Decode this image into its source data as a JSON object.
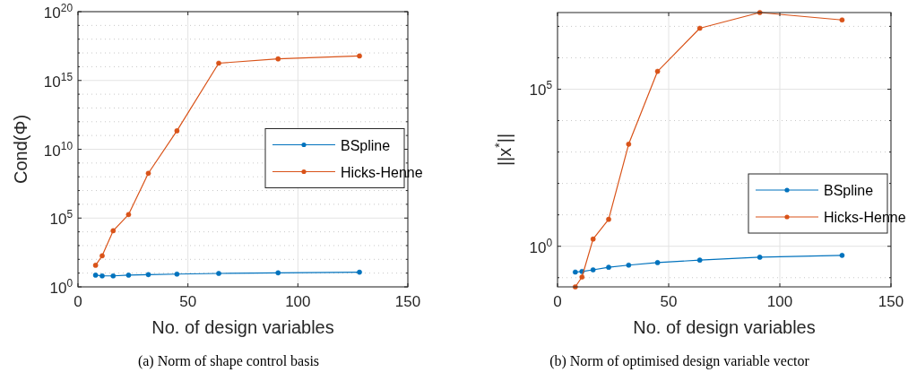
{
  "chart_data": [
    {
      "type": "line",
      "xlabel": "No. of design variables",
      "ylabel": "Cond(Φ)",
      "annotations": [
        "(a)  Norm of shape control basis"
      ],
      "log": "y",
      "grid": true,
      "legend": "right",
      "marker": "circle",
      "line_style": "solid",
      "xlim": [
        0,
        150
      ],
      "xticks": [
        0,
        50,
        100,
        150
      ],
      "ylim": [
        1,
        1e+20
      ],
      "yticks": [
        {
          "value": 1,
          "label": "10$^{0}$"
        },
        {
          "value": 10,
          "label": null
        },
        {
          "value": 100,
          "label": null
        },
        {
          "value": 1000,
          "label": null
        },
        {
          "value": 10000,
          "label": null
        },
        {
          "value": 100000.0,
          "label": "10$^{5}$"
        },
        {
          "value": 1000000.0,
          "label": null
        },
        {
          "value": 10000000.0,
          "label": null
        },
        {
          "value": 100000000.0,
          "label": null
        },
        {
          "value": 1000000000.0,
          "label": null
        },
        {
          "value": 10000000000.0,
          "label": "10$^{10}$"
        },
        {
          "value": 100000000000.0,
          "label": null
        },
        {
          "value": 1000000000000.0,
          "label": null
        },
        {
          "value": 10000000000000.0,
          "label": null
        },
        {
          "value": 100000000000000.0,
          "label": null
        },
        {
          "value": 1000000000000000.0,
          "label": "10$^{15}$"
        },
        {
          "value": 1e+16,
          "label": null
        },
        {
          "value": 1e+17,
          "label": null
        },
        {
          "value": 1e+18,
          "label": null
        },
        {
          "value": 1e+19,
          "label": null
        },
        {
          "value": 1e+20,
          "label": "10$^{20}$"
        }
      ],
      "x": [
        8,
        11,
        16,
        23,
        32,
        45,
        64,
        91,
        128
      ],
      "series": [
        {
          "name": "BSpline",
          "color": "#0072bd",
          "values": [
            7.1,
            6.3,
            6.3,
            7.1,
            7.8,
            8.5,
            9.5,
            10.5,
            11.7
          ]
        },
        {
          "name": "Hicks-Henne",
          "color": "#d95319",
          "values": [
            37,
            182,
            12000,
            180000,
            180000000.0,
            220000000000.0,
            1.8e+16,
            3.7e+16,
            6e+16
          ]
        }
      ]
    },
    {
      "type": "line",
      "xlabel": "No. of design variables",
      "ylabel": "||x$^{*}$||",
      "annotations": [
        "(b)  Norm of optimised design variable vector"
      ],
      "log": "y",
      "grid": true,
      "legend": "bottom right",
      "marker": "circle",
      "line_style": "solid",
      "xlim": [
        0,
        150
      ],
      "xticks": [
        0,
        50,
        100,
        150
      ],
      "ylim": [
        0.051,
        27500000.0
      ],
      "yticks": [
        {
          "value": 0.1,
          "label": null
        },
        {
          "value": 1,
          "label": "10$^{0}$"
        },
        {
          "value": 10,
          "label": null
        },
        {
          "value": 100,
          "label": null
        },
        {
          "value": 1000,
          "label": null
        },
        {
          "value": 10000,
          "label": null
        },
        {
          "value": 100000.0,
          "label": "10$^{5}$"
        },
        {
          "value": 1000000.0,
          "label": null
        },
        {
          "value": 10000000.0,
          "label": null
        }
      ],
      "x": [
        8,
        11,
        16,
        23,
        32,
        45,
        64,
        91,
        128
      ],
      "series": [
        {
          "name": "BSpline",
          "color": "#0072bd",
          "values": [
            0.151,
            0.158,
            0.178,
            0.214,
            0.251,
            0.302,
            0.363,
            0.447,
            0.513
          ]
        },
        {
          "name": "Hicks-Henne",
          "color": "#d95319",
          "values": [
            0.051,
            0.105,
            1.7,
            7.2,
            1780,
            370000,
            8700000.0,
            27500000.0,
            16000000.0
          ]
        }
      ]
    }
  ]
}
